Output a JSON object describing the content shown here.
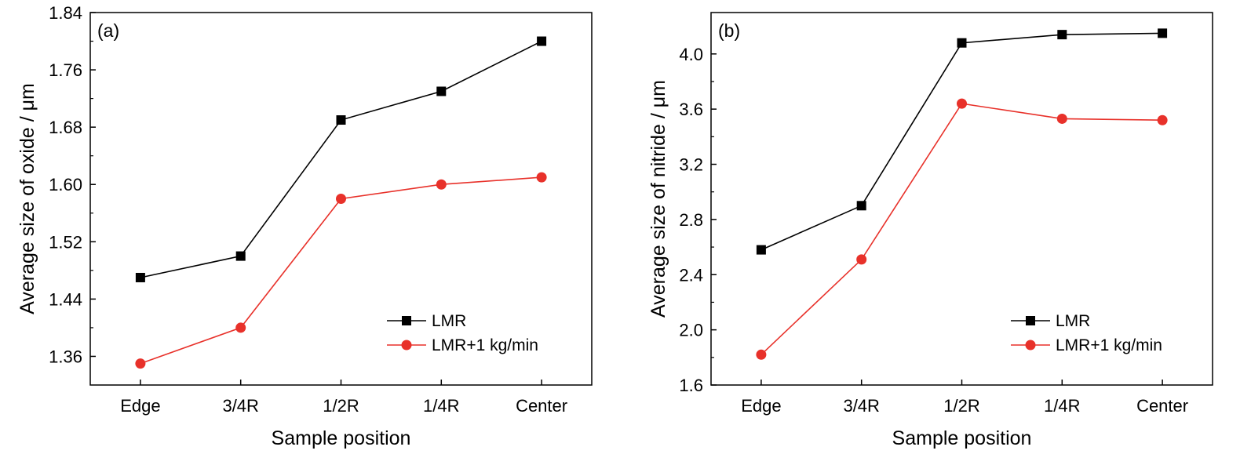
{
  "chart_data": [
    {
      "panel_label": "(a)",
      "type": "line",
      "categories": [
        "Edge",
        "3/4R",
        "1/2R",
        "1/4R",
        "Center"
      ],
      "xlabel": "Sample position",
      "ylabel": "Average size of oxide / μm",
      "ylim": [
        1.32,
        1.84
      ],
      "yticks": [
        1.36,
        1.44,
        1.52,
        1.6,
        1.68,
        1.76,
        1.84
      ],
      "ytick_labels": [
        "1.36",
        "1.44",
        "1.52",
        "1.60",
        "1.68",
        "1.76",
        "1.84"
      ],
      "legend_position": "lower-right",
      "series": [
        {
          "name": "LMR",
          "marker": "square",
          "color": "#000000",
          "values": [
            1.47,
            1.5,
            1.69,
            1.73,
            1.8
          ]
        },
        {
          "name": "LMR+1 kg/min",
          "marker": "circle",
          "color": "#e8312a",
          "values": [
            1.35,
            1.4,
            1.58,
            1.6,
            1.61
          ]
        }
      ]
    },
    {
      "panel_label": "(b)",
      "type": "line",
      "categories": [
        "Edge",
        "3/4R",
        "1/2R",
        "1/4R",
        "Center"
      ],
      "xlabel": "Sample position",
      "ylabel": "Average size of nitride / μm",
      "ylim": [
        1.6,
        4.3
      ],
      "yticks": [
        1.6,
        2.0,
        2.4,
        2.8,
        3.2,
        3.6,
        4.0
      ],
      "ytick_labels": [
        "1.6",
        "2.0",
        "2.4",
        "2.8",
        "3.2",
        "3.6",
        "4.0"
      ],
      "legend_position": "lower-right",
      "series": [
        {
          "name": "LMR",
          "marker": "square",
          "color": "#000000",
          "values": [
            2.58,
            2.9,
            4.08,
            4.14,
            4.15
          ]
        },
        {
          "name": "LMR+1 kg/min",
          "marker": "circle",
          "color": "#e8312a",
          "values": [
            1.82,
            2.51,
            3.64,
            3.53,
            3.52
          ]
        }
      ]
    }
  ]
}
